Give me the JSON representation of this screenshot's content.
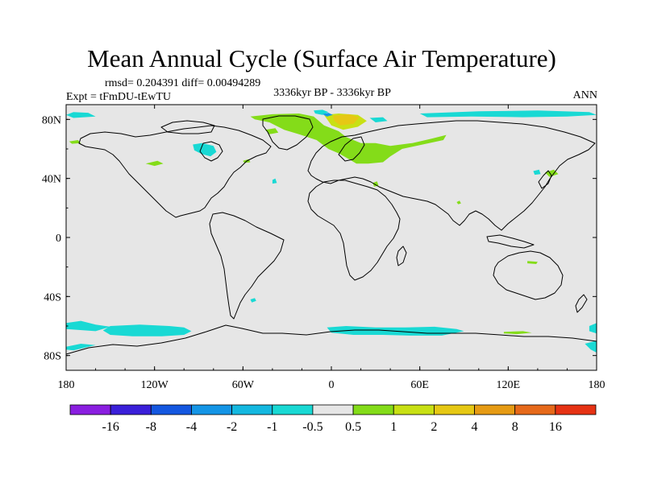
{
  "chart_data": {
    "type": "heatmap",
    "title": "Mean Annual Cycle (Surface Air Temperature)",
    "stats": "rmsd= 0.204391 diff= 0.00494289",
    "experiment": "Expt = tFmDU-tEwTU",
    "period": "3336kyr BP - 3336kyr BP",
    "season": "ANN",
    "x_ticks": [
      {
        "value": -180,
        "label": "180"
      },
      {
        "value": -120,
        "label": "120W"
      },
      {
        "value": -60,
        "label": "60W"
      },
      {
        "value": 0,
        "label": "0"
      },
      {
        "value": 60,
        "label": "60E"
      },
      {
        "value": 120,
        "label": "120E"
      },
      {
        "value": 180,
        "label": "180"
      }
    ],
    "y_ticks": [
      {
        "value": 80,
        "label": "80N"
      },
      {
        "value": 40,
        "label": "40N"
      },
      {
        "value": 0,
        "label": "0"
      },
      {
        "value": -40,
        "label": "40S"
      },
      {
        "value": -80,
        "label": "80S"
      }
    ],
    "xlim": [
      -180,
      180
    ],
    "ylim": [
      -90,
      90
    ],
    "background_color": "#e6e6e6",
    "colorbar": {
      "colors": [
        "#8a1ee0",
        "#3a1fd9",
        "#1457e0",
        "#1495e6",
        "#14b8e0",
        "#19d9d4",
        "#e6e6e6",
        "#84dc19",
        "#c8e014",
        "#e6c814",
        "#e69b14",
        "#e6691a",
        "#e63214"
      ],
      "labels": [
        "-16",
        "-8",
        "-4",
        "-2",
        "-1",
        "-0.5",
        "0.5",
        "1",
        "2",
        "4",
        "8",
        "16"
      ]
    },
    "anomaly_regions": [
      {
        "name": "southern-ocean-west",
        "color": "#19d9d4",
        "polygon": [
          [
            -180,
            -58
          ],
          [
            -170,
            -56.5
          ],
          [
            -160,
            -59
          ],
          [
            -150,
            -60.5
          ],
          [
            -160,
            -63.5
          ],
          [
            -180,
            -62
          ]
        ]
      },
      {
        "name": "southern-ocean-south-pacific",
        "color": "#19d9d4",
        "polygon": [
          [
            -180,
            -74
          ],
          [
            -170,
            -72
          ],
          [
            -160,
            -73
          ],
          [
            -175,
            -76.5
          ],
          [
            -180,
            -76
          ]
        ]
      },
      {
        "name": "southern-ocean-pacific",
        "color": "#19d9d4",
        "polygon": [
          [
            -150,
            -60
          ],
          [
            -130,
            -59
          ],
          [
            -110,
            -60
          ],
          [
            -100,
            -61
          ],
          [
            -95,
            -63.5
          ],
          [
            -100,
            -66
          ],
          [
            -115,
            -67
          ],
          [
            -135,
            -67
          ],
          [
            -150,
            -66
          ],
          [
            -155,
            -63
          ]
        ]
      },
      {
        "name": "southern-ocean-atlantic",
        "color": "#19d9d4",
        "polygon": [
          [
            -3,
            -61
          ],
          [
            10,
            -60
          ],
          [
            30,
            -61
          ],
          [
            50,
            -61
          ],
          [
            70,
            -60.5
          ],
          [
            85,
            -62
          ],
          [
            90,
            -63.5
          ],
          [
            75,
            -66.5
          ],
          [
            55,
            -66.5
          ],
          [
            35,
            -66
          ],
          [
            15,
            -66
          ],
          [
            0,
            -64.5
          ]
        ]
      },
      {
        "name": "southern-ocean-east",
        "color": "#19d9d4",
        "polygon": [
          [
            175,
            -60
          ],
          [
            180,
            -58
          ],
          [
            180,
            -65
          ],
          [
            175,
            -63.5
          ]
        ]
      },
      {
        "name": "southern-ocean-east-2",
        "color": "#19d9d4",
        "polygon": [
          [
            172,
            -72
          ],
          [
            180,
            -70
          ],
          [
            180,
            -78
          ],
          [
            176,
            -76
          ]
        ]
      },
      {
        "name": "south-atlantic-spot",
        "color": "#19d9d4",
        "polygon": [
          [
            -55,
            -42
          ],
          [
            -52,
            -41
          ],
          [
            -51,
            -43
          ],
          [
            -54,
            -44
          ]
        ]
      },
      {
        "name": "antarctic-green",
        "color": "#84dc19",
        "polygon": [
          [
            117,
            -64
          ],
          [
            130,
            -63.5
          ],
          [
            136,
            -64.5
          ],
          [
            126,
            -65.5
          ],
          [
            117,
            -65
          ]
        ]
      },
      {
        "name": "arctic-ocean-east",
        "color": "#19d9d4",
        "polygon": [
          [
            60,
            84
          ],
          [
            100,
            85.5
          ],
          [
            140,
            86
          ],
          [
            175,
            85
          ],
          [
            180,
            83
          ],
          [
            160,
            82
          ],
          [
            130,
            81.5
          ],
          [
            95,
            82
          ],
          [
            65,
            81.5
          ]
        ]
      },
      {
        "name": "arctic-ocean-west",
        "color": "#19d9d4",
        "polygon": [
          [
            -180,
            83
          ],
          [
            -175,
            85
          ],
          [
            -165,
            84.5
          ],
          [
            -160,
            82
          ],
          [
            -175,
            81
          ]
        ]
      },
      {
        "name": "hudson-bay",
        "color": "#19d9d4",
        "polygon": [
          [
            -94,
            63
          ],
          [
            -88,
            64
          ],
          [
            -80,
            62
          ],
          [
            -78,
            58
          ],
          [
            -82,
            55
          ],
          [
            -88,
            56.5
          ],
          [
            -93,
            59
          ]
        ]
      },
      {
        "name": "alaska-spot",
        "color": "#84dc19",
        "polygon": [
          [
            -178,
            65
          ],
          [
            -172,
            66
          ],
          [
            -170,
            64
          ],
          [
            -176,
            63.5
          ]
        ]
      },
      {
        "name": "canada-spot-1",
        "color": "#84dc19",
        "polygon": [
          [
            -126,
            50
          ],
          [
            -118,
            52
          ],
          [
            -114,
            50
          ],
          [
            -120,
            48.5
          ]
        ]
      },
      {
        "name": "canada-spot-2",
        "color": "#84dc19",
        "polygon": [
          [
            -60,
            52
          ],
          [
            -56,
            53
          ],
          [
            -55,
            51
          ],
          [
            -59,
            50.5
          ]
        ]
      },
      {
        "name": "greenland-sea-cyan",
        "color": "#19d9d4",
        "polygon": [
          [
            -12,
            86
          ],
          [
            -6,
            86.5
          ],
          [
            -2,
            85
          ],
          [
            -6,
            83
          ],
          [
            -11,
            84
          ]
        ]
      },
      {
        "name": "north-atlantic-green",
        "color": "#84dc19",
        "polygon": [
          [
            -55,
            82
          ],
          [
            -40,
            83.5
          ],
          [
            -22,
            84
          ],
          [
            -12,
            82
          ],
          [
            -5,
            76
          ],
          [
            5,
            72
          ],
          [
            10,
            68
          ],
          [
            20,
            64
          ],
          [
            30,
            64
          ],
          [
            40,
            62
          ],
          [
            55,
            64
          ],
          [
            68,
            67
          ],
          [
            78,
            69.5
          ],
          [
            76,
            66
          ],
          [
            62,
            63
          ],
          [
            48,
            60
          ],
          [
            40,
            55
          ],
          [
            35,
            51
          ],
          [
            25,
            50
          ],
          [
            17,
            50
          ],
          [
            12,
            53
          ],
          [
            5,
            57
          ],
          [
            -2,
            60
          ],
          [
            -10,
            66
          ],
          [
            -22,
            70
          ],
          [
            -32,
            73
          ],
          [
            -42,
            78
          ],
          [
            -52,
            80
          ]
        ]
      },
      {
        "name": "norwegian-sea-yellow",
        "color": "#c8e014",
        "polygon": [
          [
            -5,
            83
          ],
          [
            5,
            84
          ],
          [
            18,
            83
          ],
          [
            24,
            79
          ],
          [
            18,
            75
          ],
          [
            8,
            73
          ],
          [
            0,
            76
          ]
        ]
      },
      {
        "name": "barents-orange",
        "color": "#e6c814",
        "polygon": [
          [
            1,
            82.5
          ],
          [
            12,
            83.5
          ],
          [
            19,
            81.5
          ],
          [
            15,
            77
          ],
          [
            6,
            76
          ],
          [
            2,
            79
          ]
        ]
      },
      {
        "name": "greenland-sea-blue",
        "color": "#1495e6",
        "polygon": [
          [
            -6,
            83.5
          ],
          [
            -2,
            84.5
          ],
          [
            1,
            83
          ],
          [
            -3,
            82
          ]
        ]
      },
      {
        "name": "labrador-spot",
        "color": "#84dc19",
        "polygon": [
          [
            -45,
            73
          ],
          [
            -38,
            74
          ],
          [
            -36,
            71
          ],
          [
            -42,
            70
          ]
        ]
      },
      {
        "name": "barents-cyan",
        "color": "#19d9d4",
        "polygon": [
          [
            26,
            81
          ],
          [
            35,
            81.5
          ],
          [
            38,
            79
          ],
          [
            30,
            78
          ]
        ]
      },
      {
        "name": "mediterranean-cyan",
        "color": "#19d9d4",
        "polygon": [
          [
            -40,
            39
          ],
          [
            -38,
            40
          ],
          [
            -37,
            37
          ],
          [
            -40,
            36.5
          ]
        ]
      },
      {
        "name": "mediterranean-green",
        "color": "#84dc19",
        "polygon": [
          [
            28,
            37
          ],
          [
            31,
            38
          ],
          [
            32,
            35
          ],
          [
            29,
            34.5
          ]
        ]
      },
      {
        "name": "east-asia-cyan",
        "color": "#19d9d4",
        "polygon": [
          [
            137,
            45
          ],
          [
            141,
            46
          ],
          [
            142,
            43
          ],
          [
            138,
            42.5
          ]
        ]
      },
      {
        "name": "japan-green",
        "color": "#84dc19",
        "polygon": [
          [
            145,
            44
          ],
          [
            151,
            46
          ],
          [
            154,
            43
          ],
          [
            148,
            41
          ]
        ]
      },
      {
        "name": "india-spot",
        "color": "#84dc19",
        "polygon": [
          [
            85,
            24
          ],
          [
            87,
            25
          ],
          [
            88,
            23
          ],
          [
            86,
            22.5
          ]
        ]
      },
      {
        "name": "australia-spot",
        "color": "#84dc19",
        "polygon": [
          [
            133,
            -16
          ],
          [
            140,
            -16.5
          ],
          [
            139,
            -18
          ],
          [
            133,
            -17.5
          ]
        ]
      }
    ]
  }
}
